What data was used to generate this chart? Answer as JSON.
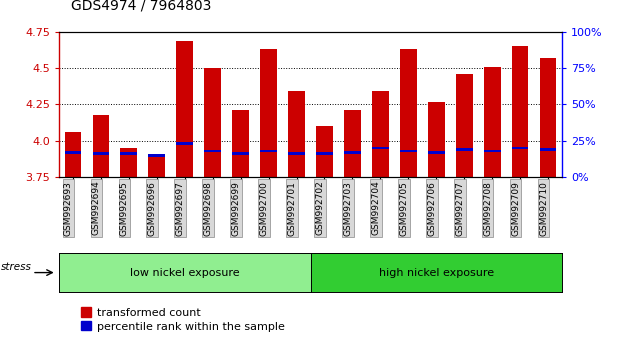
{
  "title": "GDS4974 / 7964803",
  "samples": [
    "GSM992693",
    "GSM992694",
    "GSM992695",
    "GSM992696",
    "GSM992697",
    "GSM992698",
    "GSM992699",
    "GSM992700",
    "GSM992701",
    "GSM992702",
    "GSM992703",
    "GSM992704",
    "GSM992705",
    "GSM992706",
    "GSM992707",
    "GSM992708",
    "GSM992709",
    "GSM992710"
  ],
  "red_values": [
    4.06,
    4.18,
    3.95,
    3.91,
    4.69,
    4.5,
    4.21,
    4.63,
    4.34,
    4.1,
    4.21,
    4.34,
    4.63,
    4.27,
    4.46,
    4.51,
    4.65,
    4.57
  ],
  "blue_values": [
    3.92,
    3.91,
    3.91,
    3.9,
    3.98,
    3.93,
    3.91,
    3.93,
    3.91,
    3.91,
    3.92,
    3.95,
    3.93,
    3.92,
    3.94,
    3.93,
    3.95,
    3.94
  ],
  "ymin": 3.75,
  "ymax": 4.75,
  "y_ticks": [
    3.75,
    4.0,
    4.25,
    4.5,
    4.75
  ],
  "right_ticks": [
    0,
    25,
    50,
    75,
    100
  ],
  "bar_color": "#cc0000",
  "blue_color": "#0000cc",
  "group1_label": "low nickel exposure",
  "group2_label": "high nickel exposure",
  "group1_count": 9,
  "group2_count": 9,
  "stress_label": "stress",
  "legend1": "transformed count",
  "legend2": "percentile rank within the sample",
  "group1_color": "#90ee90",
  "group2_color": "#32cd32",
  "bar_width": 0.6,
  "blue_bar_height": 0.018
}
